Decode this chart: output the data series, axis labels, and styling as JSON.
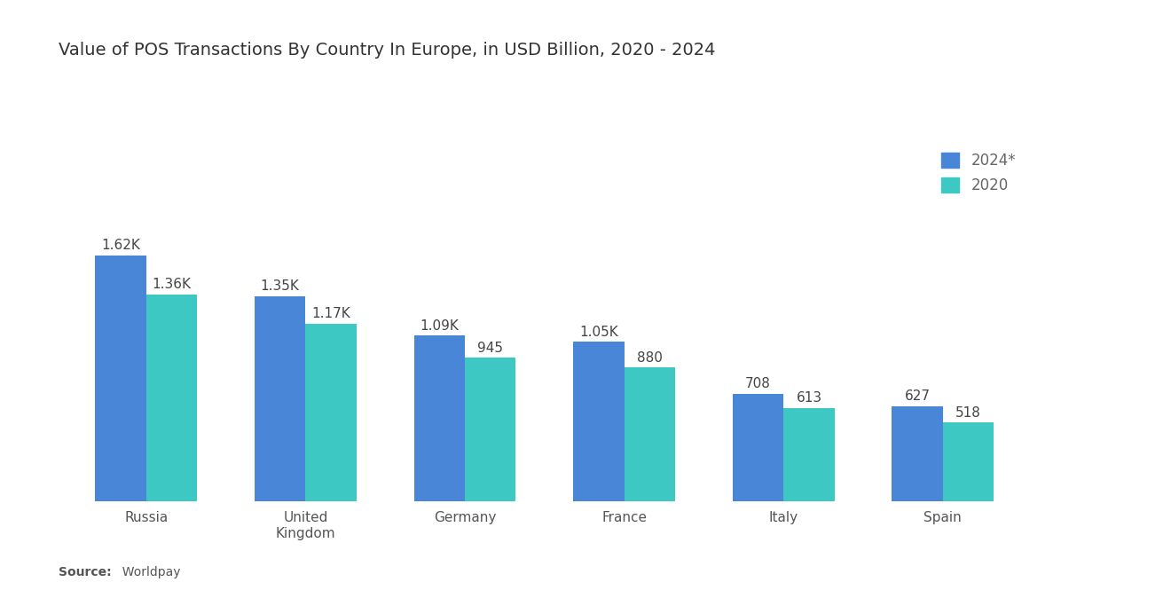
{
  "title": "Value of POS Transactions By Country In Europe, in USD Billion, 2020 - 2024",
  "categories": [
    "Russia",
    "United\nKingdom",
    "Germany",
    "France",
    "Italy",
    "Spain"
  ],
  "values_2024": [
    1620,
    1350,
    1090,
    1050,
    708,
    627
  ],
  "values_2020": [
    1360,
    1170,
    945,
    880,
    613,
    518
  ],
  "labels_2024": [
    "1.62K",
    "1.35K",
    "1.09K",
    "1.05K",
    "708",
    "627"
  ],
  "labels_2020": [
    "1.36K",
    "1.17K",
    "945",
    "880",
    "613",
    "518"
  ],
  "color_2024": "#4A86D8",
  "color_2020": "#3DC8C4",
  "legend_labels": [
    "2024*",
    "2020"
  ],
  "source_bold": "Source:",
  "source_normal": "  Worldpay",
  "background_color": "#FFFFFF",
  "bar_width": 0.32,
  "ylim": [
    0,
    2600
  ],
  "title_fontsize": 14,
  "label_fontsize": 11,
  "tick_fontsize": 11,
  "legend_fontsize": 12
}
